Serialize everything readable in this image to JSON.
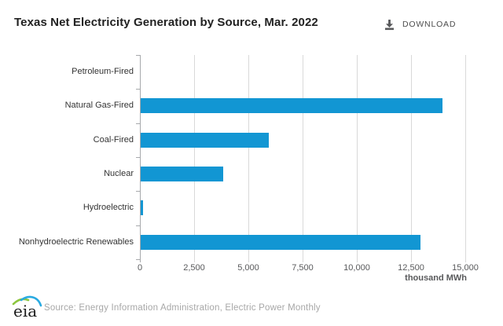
{
  "header": {
    "download_label": "DOWNLOAD"
  },
  "chart_data": {
    "type": "bar",
    "orientation": "horizontal",
    "title": "Texas Net Electricity Generation by Source, Mar. 2022",
    "categories": [
      "Petroleum-Fired",
      "Natural Gas-Fired",
      "Coal-Fired",
      "Nuclear",
      "Hydroelectric",
      "Nonhydroelectric Renewables"
    ],
    "values": [
      0,
      13900,
      5900,
      3800,
      100,
      12900
    ],
    "xlabel": "thousand MWh",
    "ylabel": "",
    "xlim": [
      0,
      15000
    ],
    "xtick_values": [
      0,
      2500,
      5000,
      7500,
      10000,
      12500,
      15000
    ],
    "xtick_labels": [
      "0",
      "2,500",
      "5,000",
      "7,500",
      "10,000",
      "12,500",
      "15,000"
    ],
    "grid": true,
    "legend": false,
    "bar_color": "#1296d3"
  },
  "footer": {
    "logo_text": "eia",
    "source": "Source: Energy Information Administration, Electric Power Monthly"
  },
  "colors": {
    "bar": "#1296d3",
    "axis_line": "#a7a9ac",
    "gridline": "#d9d9d9",
    "tick_label": "#58595b",
    "category_label": "#333333",
    "title": "#222222",
    "download": "#4d4d4d",
    "source": "#a7a7a7"
  }
}
